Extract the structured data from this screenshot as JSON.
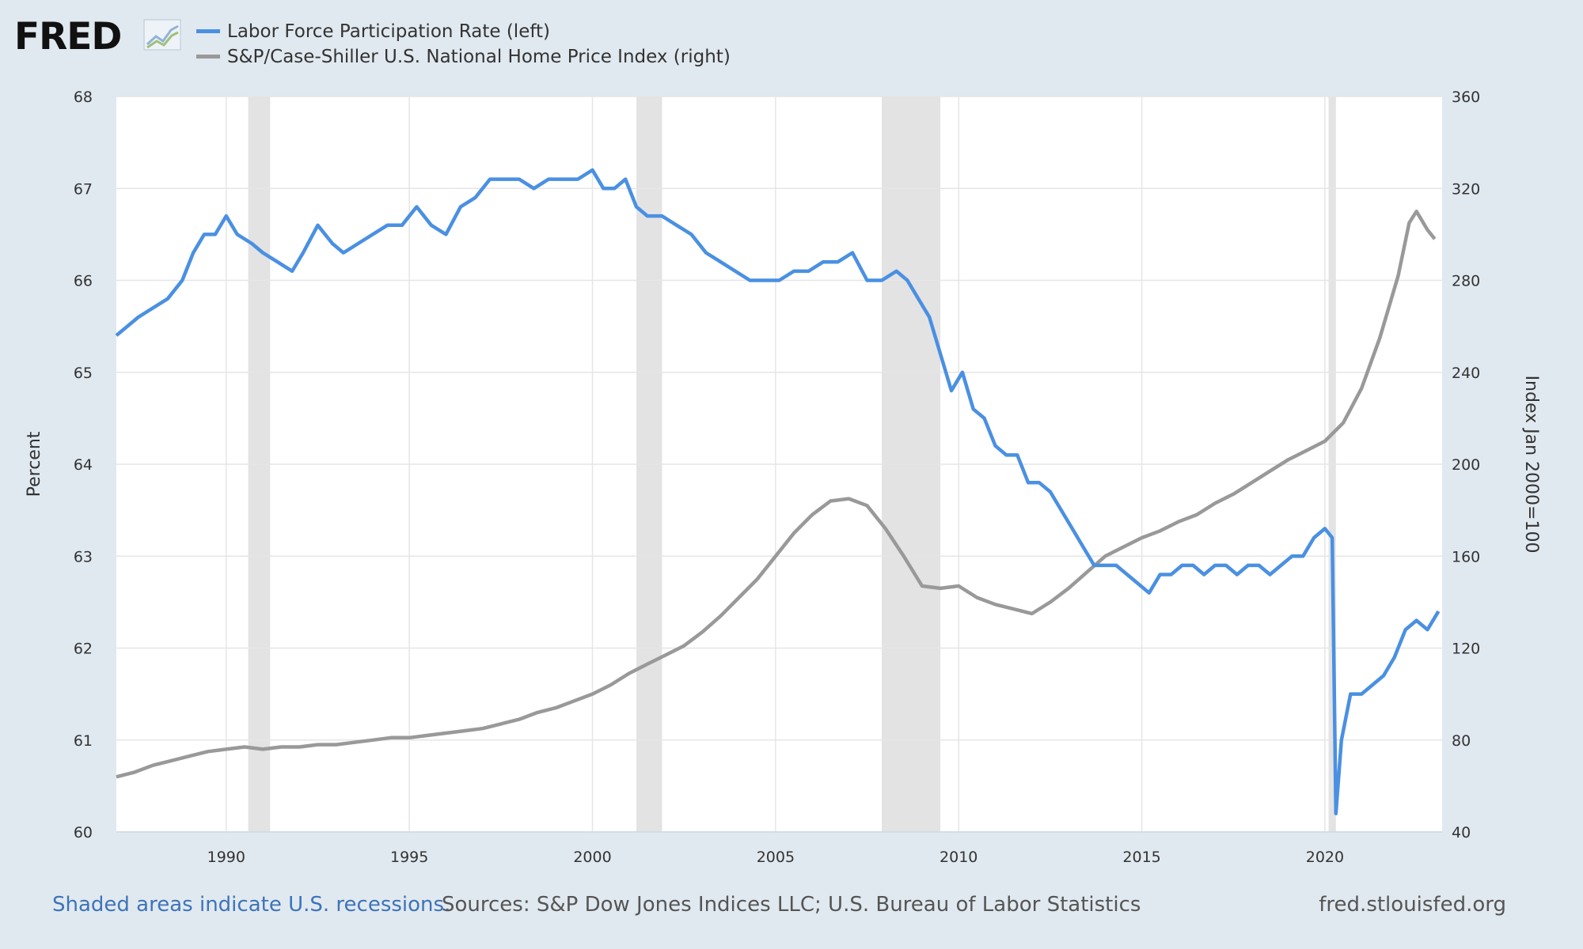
{
  "logo": {
    "text": "FRED"
  },
  "colors": {
    "background": "#e1e9f0",
    "plot_bg": "#ffffff",
    "series_lfpr": "#4a90e2",
    "series_hpi": "#999999",
    "recession": "#e3e3e3",
    "grid": "#e6e6e6",
    "link": "#3d74b8"
  },
  "footer": {
    "recession_note": "Shaded areas indicate U.S. recessions.",
    "sources": "Sources: S&P Dow Jones Indices LLC; U.S. Bureau of Labor Statistics",
    "site": "fred.stlouisfed.org"
  },
  "chart_data": {
    "type": "line",
    "title": "",
    "xlabel": "",
    "ylabel_left": "Percent",
    "ylabel_right": "Index Jan 2000=100",
    "xlim": [
      1987.0,
      2023.2
    ],
    "ylim_left": [
      60,
      68
    ],
    "ylim_right": [
      40,
      360
    ],
    "x_ticks": [
      "1990",
      "1995",
      "2000",
      "2005",
      "2010",
      "2015",
      "2020"
    ],
    "y_ticks_left": [
      "60",
      "61",
      "62",
      "63",
      "64",
      "65",
      "66",
      "67",
      "68"
    ],
    "y_ticks_right": [
      "40",
      "80",
      "120",
      "160",
      "200",
      "240",
      "280",
      "320",
      "360"
    ],
    "legend": [
      "Labor Force Participation Rate (left)",
      "S&P/Case-Shiller U.S. National Home Price Index (right)"
    ],
    "recessions": [
      [
        1990.6,
        1991.2
      ],
      [
        2001.2,
        2001.9
      ],
      [
        2007.9,
        2009.5
      ],
      [
        2020.1,
        2020.3
      ]
    ],
    "series": [
      {
        "name": "Labor Force Participation Rate (left)",
        "axis": "left",
        "x": [
          1987.0,
          1987.3,
          1987.6,
          1988.0,
          1988.4,
          1988.8,
          1989.1,
          1989.4,
          1989.7,
          1990.0,
          1990.3,
          1990.7,
          1991.0,
          1991.4,
          1991.8,
          1992.1,
          1992.5,
          1992.9,
          1993.2,
          1993.6,
          1994.0,
          1994.4,
          1994.8,
          1995.2,
          1995.6,
          1996.0,
          1996.4,
          1996.8,
          1997.2,
          1997.6,
          1998.0,
          1998.4,
          1998.8,
          1999.2,
          1999.6,
          2000.0,
          2000.3,
          2000.6,
          2000.9,
          2001.2,
          2001.5,
          2001.9,
          2002.3,
          2002.7,
          2003.1,
          2003.5,
          2003.9,
          2004.3,
          2004.7,
          2005.1,
          2005.5,
          2005.9,
          2006.3,
          2006.7,
          2007.1,
          2007.5,
          2007.9,
          2008.3,
          2008.6,
          2008.9,
          2009.2,
          2009.5,
          2009.8,
          2010.1,
          2010.4,
          2010.7,
          2011.0,
          2011.3,
          2011.6,
          2011.9,
          2012.2,
          2012.5,
          2012.8,
          2013.1,
          2013.4,
          2013.7,
          2014.0,
          2014.3,
          2014.6,
          2014.9,
          2015.2,
          2015.5,
          2015.8,
          2016.1,
          2016.4,
          2016.7,
          2017.0,
          2017.3,
          2017.6,
          2017.9,
          2018.2,
          2018.5,
          2018.8,
          2019.1,
          2019.4,
          2019.7,
          2020.0,
          2020.2,
          2020.3,
          2020.45,
          2020.7,
          2021.0,
          2021.3,
          2021.6,
          2021.9,
          2022.2,
          2022.5,
          2022.8,
          2023.1
        ],
        "values": [
          65.4,
          65.5,
          65.6,
          65.7,
          65.8,
          66.0,
          66.3,
          66.5,
          66.5,
          66.7,
          66.5,
          66.4,
          66.3,
          66.2,
          66.1,
          66.3,
          66.6,
          66.4,
          66.3,
          66.4,
          66.5,
          66.6,
          66.6,
          66.8,
          66.6,
          66.5,
          66.8,
          66.9,
          67.1,
          67.1,
          67.1,
          67.0,
          67.1,
          67.1,
          67.1,
          67.2,
          67.0,
          67.0,
          67.1,
          66.8,
          66.7,
          66.7,
          66.6,
          66.5,
          66.3,
          66.2,
          66.1,
          66.0,
          66.0,
          66.0,
          66.1,
          66.1,
          66.2,
          66.2,
          66.3,
          66.0,
          66.0,
          66.1,
          66.0,
          65.8,
          65.6,
          65.2,
          64.8,
          65.0,
          64.6,
          64.5,
          64.2,
          64.1,
          64.1,
          63.8,
          63.8,
          63.7,
          63.5,
          63.3,
          63.1,
          62.9,
          62.9,
          62.9,
          62.8,
          62.7,
          62.6,
          62.8,
          62.8,
          62.9,
          62.9,
          62.8,
          62.9,
          62.9,
          62.8,
          62.9,
          62.9,
          62.8,
          62.9,
          63.0,
          63.0,
          63.2,
          63.3,
          63.2,
          60.2,
          61.0,
          61.5,
          61.5,
          61.6,
          61.7,
          61.9,
          62.2,
          62.3,
          62.2,
          62.4
        ],
        "color": "#4a90e2"
      },
      {
        "name": "S&P/Case-Shiller U.S. National Home Price Index (right)",
        "axis": "right",
        "x": [
          1987.0,
          1987.5,
          1988.0,
          1988.5,
          1989.0,
          1989.5,
          1990.0,
          1990.5,
          1991.0,
          1991.5,
          1992.0,
          1992.5,
          1993.0,
          1993.5,
          1994.0,
          1994.5,
          1995.0,
          1995.5,
          1996.0,
          1996.5,
          1997.0,
          1997.5,
          1998.0,
          1998.5,
          1999.0,
          1999.5,
          2000.0,
          2000.5,
          2001.0,
          2001.5,
          2002.0,
          2002.5,
          2003.0,
          2003.5,
          2004.0,
          2004.5,
          2005.0,
          2005.5,
          2006.0,
          2006.5,
          2007.0,
          2007.5,
          2008.0,
          2008.5,
          2009.0,
          2009.5,
          2010.0,
          2010.5,
          2011.0,
          2011.5,
          2012.0,
          2012.5,
          2013.0,
          2013.5,
          2014.0,
          2014.5,
          2015.0,
          2015.5,
          2016.0,
          2016.5,
          2017.0,
          2017.5,
          2018.0,
          2018.5,
          2019.0,
          2019.5,
          2020.0,
          2020.5,
          2021.0,
          2021.5,
          2022.0,
          2022.3,
          2022.5,
          2022.8,
          2023.0
        ],
        "values": [
          64,
          66,
          69,
          71,
          73,
          75,
          76,
          77,
          76,
          77,
          77,
          78,
          78,
          79,
          80,
          81,
          81,
          82,
          83,
          84,
          85,
          87,
          89,
          92,
          94,
          97,
          100,
          104,
          109,
          113,
          117,
          121,
          127,
          134,
          142,
          150,
          160,
          170,
          178,
          184,
          185,
          182,
          172,
          160,
          147,
          146,
          147,
          142,
          139,
          137,
          135,
          140,
          146,
          153,
          160,
          164,
          168,
          171,
          175,
          178,
          183,
          187,
          192,
          197,
          202,
          206,
          210,
          218,
          233,
          255,
          282,
          305,
          310,
          302,
          298
        ],
        "color": "#999999"
      }
    ]
  }
}
